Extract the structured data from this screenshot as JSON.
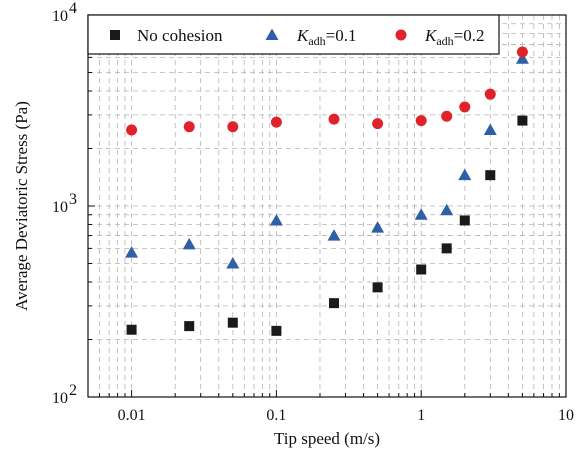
{
  "chart_data": {
    "type": "scatter",
    "xlabel": "Tip speed (m/s)",
    "ylabel": "Average Deviatoric  Stress (Pa)",
    "x_scale": "log",
    "y_scale": "log",
    "xlim": [
      0.005,
      10
    ],
    "ylim": [
      100,
      10000
    ],
    "grid": true,
    "legend_position": "top",
    "x_ticks": [
      {
        "value": 0.01,
        "label": "0.01"
      },
      {
        "value": 0.1,
        "label": "0.1"
      },
      {
        "value": 1,
        "label": "1"
      },
      {
        "value": 10,
        "label": "10"
      }
    ],
    "y_ticks": [
      {
        "value": 100,
        "base": "10",
        "exp": "2"
      },
      {
        "value": 1000,
        "base": "10",
        "exp": "3"
      },
      {
        "value": 10000,
        "base": "10",
        "exp": "4"
      }
    ],
    "series": [
      {
        "name": "No cohesion",
        "marker": "square",
        "color": "#1a1a1a",
        "x": [
          0.01,
          0.025,
          0.05,
          0.1,
          0.25,
          0.5,
          1,
          1.5,
          2,
          3,
          5
        ],
        "y": [
          225,
          235,
          245,
          222,
          310,
          375,
          465,
          600,
          840,
          1450,
          2800
        ]
      },
      {
        "name": "K_adh=0.1",
        "marker": "triangle",
        "color": "#2f5fa6",
        "legend_parts": {
          "symbol": "K",
          "sub": "adh",
          "suffix": "=0.1"
        },
        "x": [
          0.01,
          0.025,
          0.05,
          0.1,
          0.25,
          0.5,
          1,
          1.5,
          2,
          3,
          5
        ],
        "y": [
          570,
          630,
          500,
          840,
          700,
          770,
          900,
          950,
          1450,
          2500,
          5900
        ]
      },
      {
        "name": "K_adh=0.2",
        "marker": "circle",
        "color": "#e0232a",
        "legend_parts": {
          "symbol": "K",
          "sub": "adh",
          "suffix": "=0.2"
        },
        "x": [
          0.01,
          0.025,
          0.05,
          0.1,
          0.25,
          0.5,
          1,
          1.5,
          2,
          3,
          5
        ],
        "y": [
          2500,
          2600,
          2600,
          2750,
          2850,
          2700,
          2800,
          2950,
          3300,
          3850,
          6400
        ]
      }
    ]
  }
}
